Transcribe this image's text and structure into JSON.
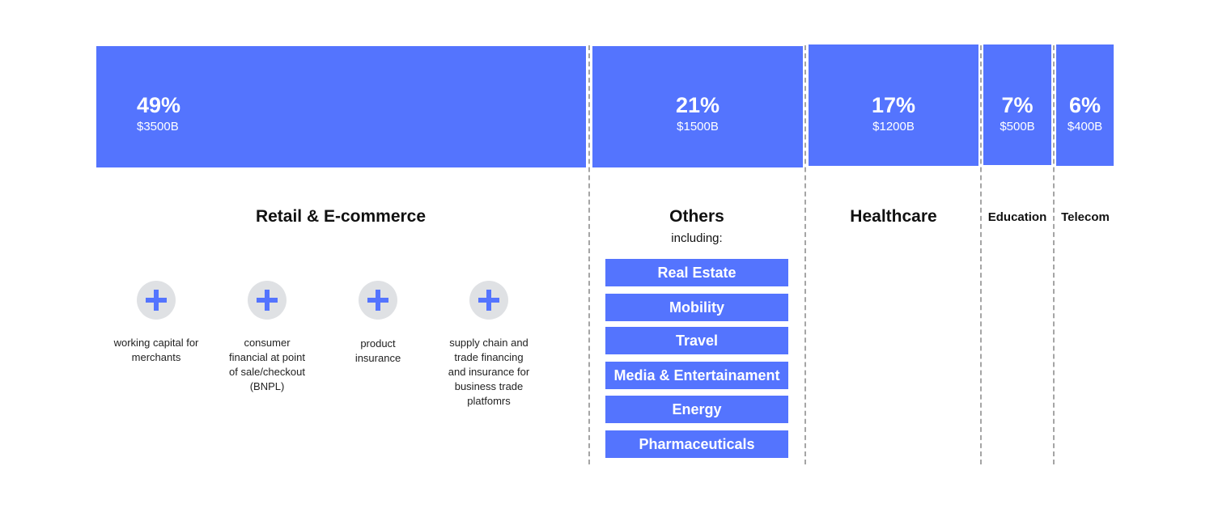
{
  "chart_data": {
    "type": "bar",
    "categories": [
      "Retail & E-commerce",
      "Others",
      "Healthcare",
      "Education",
      "Telecom"
    ],
    "values": [
      49,
      21,
      17,
      7,
      6
    ],
    "series": [
      {
        "values": [
          49,
          21,
          17,
          7,
          6
        ]
      },
      {
        "values": [
          3500,
          1500,
          1200,
          500,
          400
        ]
      }
    ],
    "segments": [
      {
        "name": "Retail & E-commerce",
        "percent_label": "49%",
        "amount_label": "$3500B"
      },
      {
        "name": "Others",
        "sub_label": "including:",
        "percent_label": "21%",
        "amount_label": "$1500B"
      },
      {
        "name": "Healthcare",
        "percent_label": "17%",
        "amount_label": "$1200B"
      },
      {
        "name": "Education",
        "percent_label": "7%",
        "amount_label": "$500B"
      },
      {
        "name": "Telecom",
        "percent_label": "6%",
        "amount_label": "$400B"
      }
    ],
    "others_items": [
      "Real Estate",
      "Mobility",
      "Travel",
      "Media & Entertainament",
      "Energy",
      "Pharmaceuticals"
    ],
    "retail_features": [
      [
        "working capital for",
        "merchants"
      ],
      [
        "consumer",
        "financial at point",
        "of sale/checkout",
        "(BNPL)"
      ],
      [
        "product",
        "insurance"
      ],
      [
        "supply chain and",
        "trade financing",
        "and insurance for",
        "business trade",
        "platfomrs"
      ]
    ]
  },
  "colors": {
    "bar": "#5474fe",
    "icon_bg": "#dfe1e4",
    "divider": "#a5a5a5"
  },
  "icons": {
    "feature_icon": "plus-icon"
  }
}
